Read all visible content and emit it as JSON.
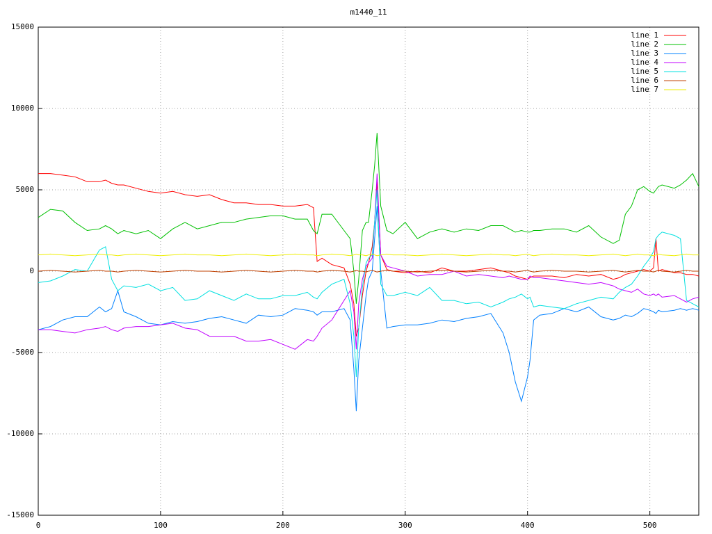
{
  "chart_data": {
    "type": "line",
    "title": "m1440_11",
    "x": [
      0,
      10,
      20,
      30,
      40,
      50,
      55,
      60,
      65,
      70,
      80,
      90,
      100,
      110,
      120,
      130,
      140,
      150,
      160,
      170,
      180,
      190,
      200,
      210,
      220,
      225,
      228,
      232,
      240,
      250,
      255,
      258,
      260,
      262,
      265,
      268,
      270,
      273,
      275,
      277,
      280,
      285,
      290,
      300,
      310,
      320,
      330,
      340,
      350,
      360,
      370,
      380,
      385,
      390,
      395,
      400,
      402,
      405,
      410,
      420,
      430,
      440,
      450,
      460,
      470,
      475,
      480,
      485,
      490,
      495,
      500,
      503,
      505,
      507,
      510,
      520,
      525,
      530,
      535,
      540
    ],
    "xlim": [
      0,
      540
    ],
    "xticks": [
      0,
      100,
      200,
      300,
      400,
      500
    ],
    "ylim": [
      -15000,
      15000
    ],
    "yticks": [
      -15000,
      -10000,
      -5000,
      0,
      5000,
      10000,
      15000
    ],
    "grid": true,
    "legend": "top-right",
    "series": [
      {
        "name": "line 1",
        "color": "#ff0000",
        "values": [
          6000,
          6000,
          5900,
          5800,
          5500,
          5500,
          5600,
          5400,
          5300,
          5300,
          5100,
          4900,
          4800,
          4900,
          4700,
          4600,
          4700,
          4400,
          4200,
          4200,
          4100,
          4100,
          4000,
          4000,
          4100,
          3900,
          600,
          800,
          400,
          200,
          -800,
          -2000,
          -4000,
          -3500,
          -1500,
          0,
          500,
          1500,
          3000,
          5500,
          1000,
          100,
          0,
          -100,
          0,
          -100,
          200,
          0,
          0,
          100,
          200,
          0,
          -100,
          -300,
          -400,
          -500,
          -400,
          -300,
          -300,
          -300,
          -400,
          -200,
          -300,
          -200,
          -500,
          -400,
          -200,
          -100,
          0,
          100,
          0,
          200,
          2000,
          0,
          100,
          -100,
          -100,
          -200,
          -200,
          -300
        ]
      },
      {
        "name": "line 2",
        "color": "#00c000",
        "values": [
          3300,
          3800,
          3700,
          3000,
          2500,
          2600,
          2800,
          2600,
          2300,
          2500,
          2300,
          2500,
          2000,
          2600,
          3000,
          2600,
          2800,
          3000,
          3000,
          3200,
          3300,
          3400,
          3400,
          3200,
          3200,
          2500,
          2300,
          3500,
          3500,
          2500,
          2000,
          0,
          -2000,
          -500,
          2500,
          3000,
          3000,
          5000,
          6500,
          8500,
          4000,
          2500,
          2300,
          3000,
          2000,
          2400,
          2600,
          2400,
          2600,
          2500,
          2800,
          2800,
          2600,
          2400,
          2500,
          2400,
          2400,
          2500,
          2500,
          2600,
          2600,
          2400,
          2800,
          2100,
          1700,
          1900,
          3500,
          4000,
          5000,
          5200,
          4900,
          4800,
          5000,
          5200,
          5300,
          5100,
          5300,
          5600,
          6000,
          5200
        ]
      },
      {
        "name": "line 3",
        "color": "#0080ff",
        "values": [
          -3600,
          -3400,
          -3000,
          -2800,
          -2800,
          -2200,
          -2500,
          -2300,
          -1200,
          -2500,
          -2800,
          -3200,
          -3300,
          -3100,
          -3200,
          -3100,
          -2900,
          -2800,
          -3000,
          -3200,
          -2700,
          -2800,
          -2700,
          -2300,
          -2400,
          -2500,
          -2700,
          -2500,
          -2500,
          -2300,
          -3000,
          -6000,
          -8600,
          -5500,
          -3500,
          -1500,
          -500,
          0,
          2000,
          4000,
          0,
          -3500,
          -3400,
          -3300,
          -3300,
          -3200,
          -3000,
          -3100,
          -2900,
          -2800,
          -2600,
          -3800,
          -5000,
          -6800,
          -8000,
          -6500,
          -5500,
          -3000,
          -2700,
          -2600,
          -2300,
          -2500,
          -2200,
          -2800,
          -3000,
          -2900,
          -2700,
          -2800,
          -2600,
          -2300,
          -2400,
          -2500,
          -2600,
          -2400,
          -2500,
          -2400,
          -2300,
          -2400,
          -2300,
          -2400
        ]
      },
      {
        "name": "line 4",
        "color": "#c000ff",
        "values": [
          -3600,
          -3600,
          -3700,
          -3800,
          -3600,
          -3500,
          -3400,
          -3600,
          -3700,
          -3500,
          -3400,
          -3400,
          -3300,
          -3200,
          -3500,
          -3600,
          -4000,
          -4000,
          -4000,
          -4300,
          -4300,
          -4200,
          -4500,
          -4800,
          -4200,
          -4300,
          -4000,
          -3500,
          -3000,
          -1800,
          -1200,
          -2500,
          -4800,
          -2000,
          -500,
          300,
          500,
          800,
          3000,
          6000,
          1000,
          300,
          200,
          0,
          -300,
          -200,
          -200,
          0,
          -300,
          -200,
          -300,
          -400,
          -300,
          -400,
          -500,
          -500,
          -300,
          -400,
          -400,
          -500,
          -600,
          -700,
          -800,
          -700,
          -900,
          -1100,
          -1200,
          -1300,
          -1100,
          -1400,
          -1500,
          -1400,
          -1500,
          -1400,
          -1600,
          -1500,
          -1700,
          -1900,
          -1700,
          -1600
        ]
      },
      {
        "name": "line 5",
        "color": "#00e0e0",
        "values": [
          -700,
          -600,
          -300,
          100,
          0,
          1300,
          1500,
          -500,
          -1200,
          -900,
          -1000,
          -800,
          -1200,
          -1000,
          -1800,
          -1700,
          -1200,
          -1500,
          -1800,
          -1400,
          -1700,
          -1700,
          -1500,
          -1500,
          -1300,
          -1600,
          -1700,
          -1300,
          -800,
          -500,
          -2000,
          -4000,
          -6500,
          -3500,
          -1000,
          500,
          800,
          1000,
          3000,
          5000,
          -800,
          -1500,
          -1500,
          -1300,
          -1500,
          -1000,
          -1800,
          -1800,
          -2000,
          -1900,
          -2200,
          -1900,
          -1700,
          -1600,
          -1400,
          -1700,
          -1600,
          -2200,
          -2100,
          -2200,
          -2300,
          -2000,
          -1800,
          -1600,
          -1700,
          -1300,
          -1000,
          -800,
          -300,
          300,
          800,
          1200,
          2000,
          2200,
          2400,
          2200,
          2000,
          -1800,
          -2000,
          -2200
        ]
      },
      {
        "name": "line 6",
        "color": "#c04000",
        "values": [
          0,
          50,
          0,
          -50,
          0,
          50,
          0,
          0,
          -50,
          0,
          50,
          0,
          -50,
          0,
          50,
          0,
          0,
          -50,
          0,
          50,
          0,
          -50,
          0,
          50,
          0,
          0,
          -50,
          0,
          50,
          0,
          -50,
          0,
          50,
          0,
          0,
          -50,
          0,
          50,
          0,
          -50,
          0,
          50,
          0,
          0,
          -50,
          0,
          50,
          0,
          -50,
          0,
          50,
          0,
          0,
          -50,
          0,
          50,
          0,
          -50,
          0,
          50,
          0,
          0,
          -50,
          0,
          50,
          0,
          -50,
          0,
          50,
          0,
          0,
          -50,
          0,
          50,
          0,
          -50,
          0,
          50,
          0,
          0
        ]
      },
      {
        "name": "line 7",
        "color": "#eeee00",
        "values": [
          1000,
          1050,
          1000,
          950,
          1000,
          1050,
          1000,
          1000,
          950,
          1000,
          1050,
          1000,
          950,
          1000,
          1050,
          1000,
          1000,
          950,
          1000,
          1050,
          1000,
          950,
          1000,
          1050,
          1000,
          1000,
          950,
          1000,
          1050,
          1000,
          950,
          1000,
          1050,
          1000,
          1000,
          950,
          1000,
          1050,
          1000,
          950,
          1000,
          1050,
          1000,
          1000,
          950,
          1000,
          1050,
          1000,
          950,
          1000,
          1050,
          1000,
          1000,
          950,
          1000,
          1050,
          1000,
          950,
          1000,
          1050,
          1000,
          1000,
          950,
          1000,
          1050,
          1000,
          950,
          1000,
          1050,
          1000,
          1000,
          950,
          1000,
          1050,
          1000,
          950,
          1000,
          1050,
          1000,
          1000
        ]
      }
    ]
  }
}
